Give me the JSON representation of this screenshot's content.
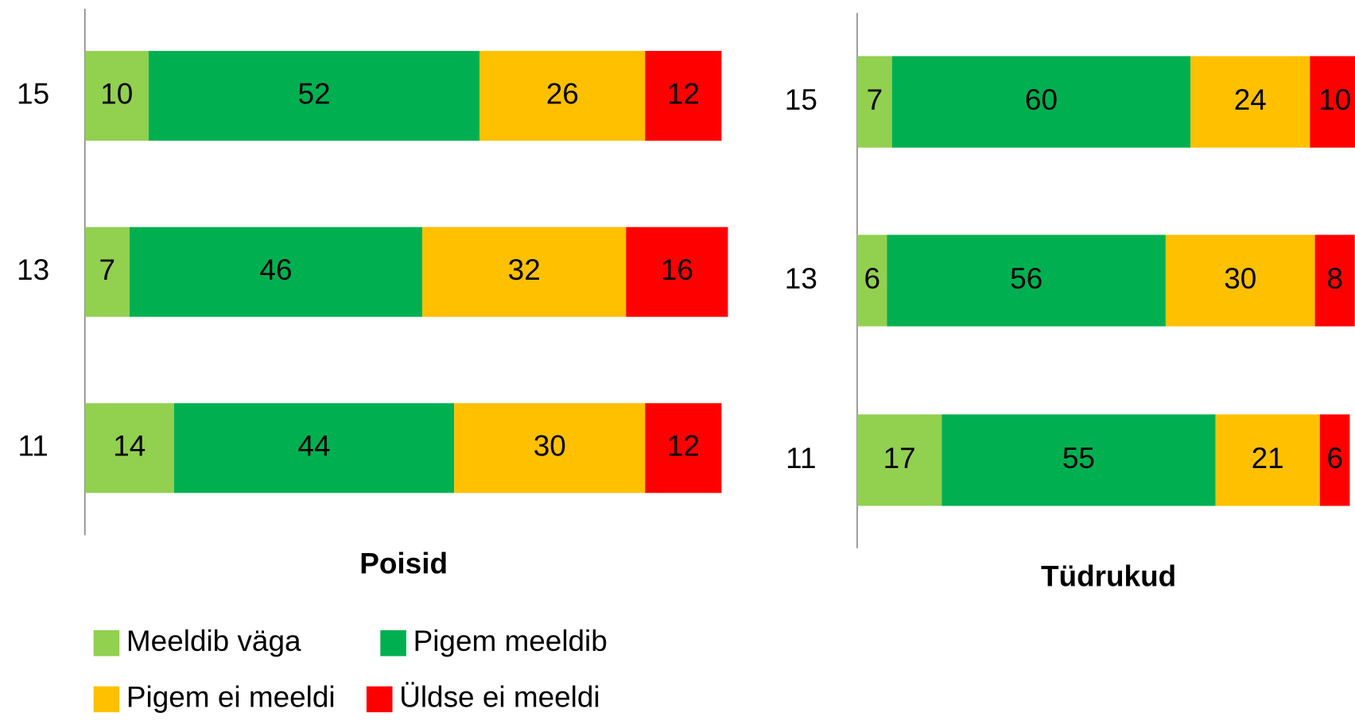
{
  "chart_data": [
    {
      "type": "stacked-bar-horizontal",
      "title": "Poisid",
      "categories": [
        "15",
        "13",
        "11"
      ],
      "xlim": [
        0,
        100
      ],
      "series": [
        {
          "name": "Meeldib väga",
          "color": "#92d050",
          "values": [
            10,
            7,
            14
          ]
        },
        {
          "name": "Pigem meeldib",
          "color": "#00b050",
          "values": [
            52,
            46,
            44
          ]
        },
        {
          "name": "Pigem ei meeldi",
          "color": "#ffc000",
          "values": [
            26,
            32,
            30
          ]
        },
        {
          "name": "Üldse ei meeldi",
          "color": "#ff0000",
          "values": [
            12,
            16,
            12
          ]
        }
      ]
    },
    {
      "type": "stacked-bar-horizontal",
      "title": "Tüdrukud",
      "categories": [
        "15",
        "13",
        "11"
      ],
      "xlim": [
        0,
        100
      ],
      "series": [
        {
          "color": "#92d050",
          "values": [
            7,
            6,
            17
          ]
        },
        {
          "color": "#00b050",
          "values": [
            60,
            56,
            55
          ]
        },
        {
          "color": "#ffc000",
          "values": [
            24,
            30,
            21
          ]
        },
        {
          "color": "#ff0000",
          "values": [
            10,
            8,
            6
          ]
        }
      ]
    }
  ]
}
